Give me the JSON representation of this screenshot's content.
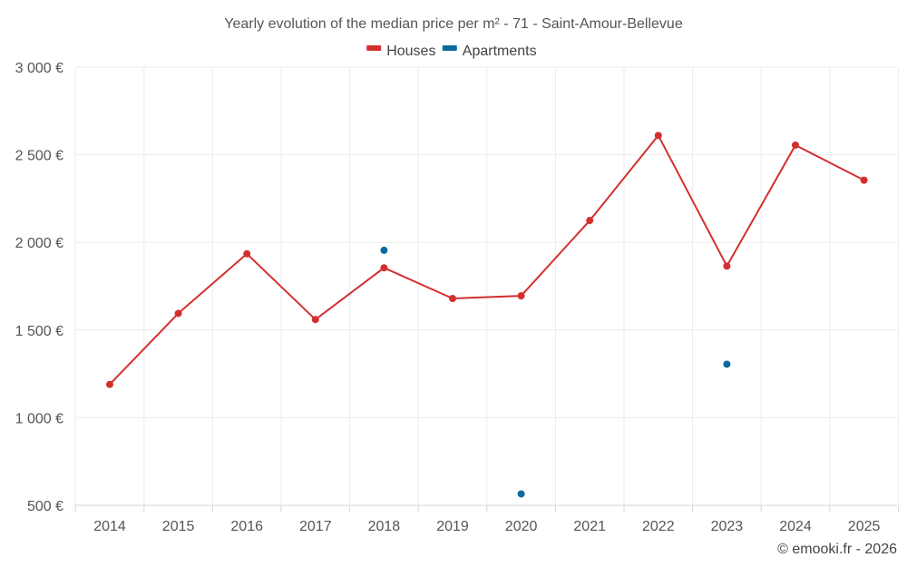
{
  "chart_data": {
    "type": "line",
    "title": "Yearly evolution of the median price per m² - 71 - Saint-Amour-Bellevue",
    "xlabel": "",
    "ylabel": "",
    "categories": [
      "2014",
      "2015",
      "2016",
      "2017",
      "2018",
      "2019",
      "2020",
      "2021",
      "2022",
      "2023",
      "2024",
      "2025"
    ],
    "ylim": [
      500,
      3000
    ],
    "y_ticks": [
      500,
      1000,
      1500,
      2000,
      2500,
      3000
    ],
    "y_tick_labels": [
      "500 €",
      "1 000 €",
      "1 500 €",
      "2 000 €",
      "2 500 €",
      "3 000 €"
    ],
    "grid": true,
    "legend_position": "top-center",
    "series": [
      {
        "name": "Houses",
        "color": "#d32f2f",
        "values": [
          1190,
          1595,
          1935,
          1560,
          1855,
          1680,
          1695,
          2125,
          2610,
          1865,
          2555,
          2355
        ]
      },
      {
        "name": "Apartments",
        "color": "#0a6b9c",
        "values": [
          null,
          null,
          null,
          null,
          1955,
          null,
          565,
          null,
          null,
          1305,
          null,
          null
        ]
      }
    ]
  },
  "credit": "© emooki.fr - 2026"
}
